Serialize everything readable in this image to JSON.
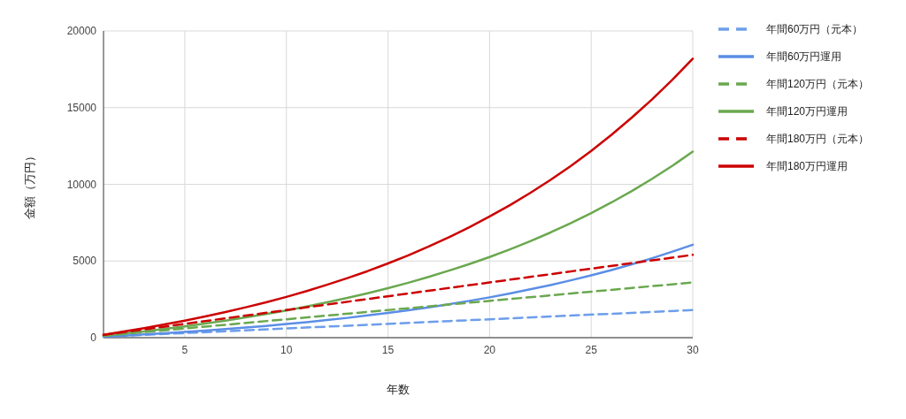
{
  "chart_data": {
    "type": "line",
    "xlabel": "年数",
    "ylabel": "金額（万円）",
    "xlim": [
      1,
      30
    ],
    "xticks": [
      5,
      10,
      15,
      20,
      25,
      30
    ],
    "ylim": [
      0,
      20000
    ],
    "yticks": [
      0,
      5000,
      10000,
      15000,
      20000
    ],
    "grid": true,
    "legend": "right",
    "marker": "none",
    "series": [
      {
        "name": "年間60万円（元本）",
        "color": "#6d9eeb",
        "line_style": "dashed",
        "x": [
          1,
          30
        ],
        "values": [
          60,
          1800
        ]
      },
      {
        "name": "年間60万円運用",
        "color": "#5b8ee6",
        "line_style": "solid",
        "x": [
          1,
          2,
          3,
          4,
          5,
          6,
          7,
          8,
          9,
          10,
          11,
          12,
          13,
          14,
          15,
          16,
          17,
          18,
          19,
          20,
          21,
          22,
          23,
          24,
          25,
          26,
          27,
          28,
          29,
          30
        ],
        "values": [
          60,
          130,
          210,
          290,
          370,
          460,
          560,
          660,
          770,
          890,
          1010,
          1150,
          1290,
          1450,
          1610,
          1790,
          1980,
          2180,
          2400,
          2630,
          2880,
          3150,
          3430,
          3740,
          4060,
          4410,
          4780,
          5180,
          5610,
          6060
        ]
      },
      {
        "name": "年間120万円（元本）",
        "color": "#6aa84f",
        "line_style": "dashed",
        "x": [
          1,
          30
        ],
        "values": [
          120,
          3600
        ]
      },
      {
        "name": "年間120万円運用",
        "color": "#6aa84f",
        "line_style": "solid",
        "x": [
          1,
          2,
          3,
          4,
          5,
          6,
          7,
          8,
          9,
          10,
          11,
          12,
          13,
          14,
          15,
          16,
          17,
          18,
          19,
          20,
          21,
          22,
          23,
          24,
          25,
          26,
          27,
          28,
          29,
          30
        ],
        "values": [
          130,
          270,
          410,
          570,
          740,
          920,
          1110,
          1320,
          1540,
          1770,
          2030,
          2300,
          2590,
          2900,
          3230,
          3580,
          3960,
          4370,
          4800,
          5260,
          5760,
          6290,
          6860,
          7470,
          8120,
          8820,
          9560,
          10360,
          11210,
          12130
        ]
      },
      {
        "name": "年間180万円（元本）",
        "color": "#cc0000",
        "line_style": "dashed",
        "x": [
          1,
          30
        ],
        "values": [
          180,
          5400
        ]
      },
      {
        "name": "年間180万円運用",
        "color": "#cc0000",
        "line_style": "solid",
        "x": [
          1,
          2,
          3,
          4,
          5,
          6,
          7,
          8,
          9,
          10,
          11,
          12,
          13,
          14,
          15,
          16,
          17,
          18,
          19,
          20,
          21,
          22,
          23,
          24,
          25,
          26,
          27,
          28,
          29,
          30
        ],
        "values": [
          190,
          400,
          620,
          860,
          1110,
          1380,
          1670,
          1980,
          2310,
          2660,
          3040,
          3450,
          3880,
          4340,
          4840,
          5370,
          5940,
          6550,
          7200,
          7900,
          8640,
          9440,
          10290,
          11200,
          12180,
          13230,
          14350,
          15540,
          16820,
          18190
        ]
      }
    ]
  }
}
